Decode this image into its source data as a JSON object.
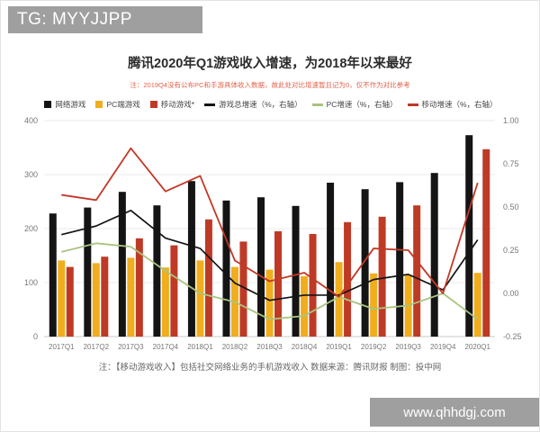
{
  "watermarks": {
    "top_left": "TG: MYYJJPP",
    "bottom_right": "www.qhhdgj.com"
  },
  "chart": {
    "title": "腾讯2020年Q1游戏收入增速，为2018年以来最好",
    "subtitle_note": "注：2019Q4没有公布PC和手游具体收入数据，故此处对比增速暂且记为0，仅不作为对比参考",
    "footer_note": "注：【移动游戏收入】包括社交网络业务的手机游戏收入  数据来源：腾讯财报  制图：投中网"
  },
  "chart_data": {
    "type": "bar+line",
    "title": "腾讯2020年Q1游戏收入增速，为2018年以来最好",
    "categories": [
      "2017Q1",
      "2017Q2",
      "2017Q3",
      "2017Q4",
      "2018Q1",
      "2018Q2",
      "2018Q3",
      "2018Q4",
      "2019Q1",
      "2019Q2",
      "2019Q3",
      "2019Q4",
      "2020Q1"
    ],
    "bar_series": [
      {
        "name": "网络游戏",
        "color": "#141414",
        "axis": "left",
        "values": [
          228,
          239,
          268,
          243,
          288,
          252,
          258,
          242,
          285,
          273,
          286,
          303,
          373
        ]
      },
      {
        "name": "PC端游戏",
        "color": "#F0AD1E",
        "axis": "left",
        "values": [
          141,
          136,
          146,
          128,
          141,
          129,
          124,
          112,
          138,
          117,
          115,
          0,
          118
        ]
      },
      {
        "name": "移动游戏*",
        "color": "#BE3A26",
        "axis": "left",
        "values": [
          129,
          148,
          182,
          169,
          217,
          176,
          195,
          190,
          212,
          222,
          243,
          0,
          347
        ]
      }
    ],
    "line_series": [
      {
        "name": "游戏总增速（%，右轴）",
        "color": "#141414",
        "axis": "right",
        "values": [
          0.34,
          0.39,
          0.48,
          0.32,
          0.26,
          0.06,
          -0.04,
          -0.01,
          -0.01,
          0.08,
          0.11,
          0.02,
          0.31
        ]
      },
      {
        "name": "PC增速（%，右轴）",
        "color": "#A9C47F",
        "axis": "right",
        "values": [
          0.24,
          0.29,
          0.27,
          0.13,
          0.0,
          -0.05,
          -0.15,
          -0.13,
          -0.02,
          -0.09,
          -0.07,
          0.0,
          -0.15
        ]
      },
      {
        "name": "移动增速（%，右轴）",
        "color": "#C33826",
        "axis": "right",
        "values": [
          0.57,
          0.54,
          0.84,
          0.59,
          0.68,
          0.19,
          0.07,
          0.12,
          -0.02,
          0.26,
          0.25,
          0.0,
          0.64
        ]
      }
    ],
    "left_axis": {
      "ticks": [
        "0",
        "100",
        "200",
        "300",
        "400"
      ],
      "min": 0,
      "max": 400
    },
    "right_axis": {
      "ticks": [
        "-0.25",
        "0.00",
        "0.25",
        "0.50",
        "0.75",
        "1.00"
      ],
      "min": -0.25,
      "max": 1.0
    },
    "grid": true,
    "legend_position": "top"
  }
}
